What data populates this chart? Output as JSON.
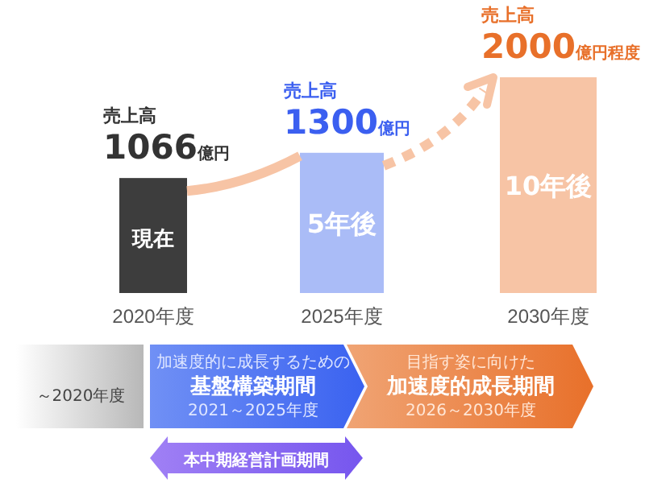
{
  "chart_data": {
    "type": "bar",
    "categories": [
      "2020年度",
      "2025年度",
      "2030年度"
    ],
    "values": [
      1066,
      1300,
      2000
    ],
    "colors": [
      "#3d3d3d",
      "#aabcf7",
      "#f7c4a5"
    ],
    "value_labels": [
      "1066億円",
      "1300億円",
      "2000億円程度"
    ],
    "ylim": [
      0,
      2000
    ],
    "tick_labels": "x",
    "annotations": [
      "売上高",
      "売上高",
      "売上高",
      "現在",
      "5年後",
      "10年後",
      "～2020年度",
      "加速度的に成長するための",
      "基盤構築期間",
      "2021～2025年度",
      "目指す姿に向けた",
      "加速度的成長期間",
      "2026～2030年度",
      "本中期経営計画期間"
    ]
  }
}
